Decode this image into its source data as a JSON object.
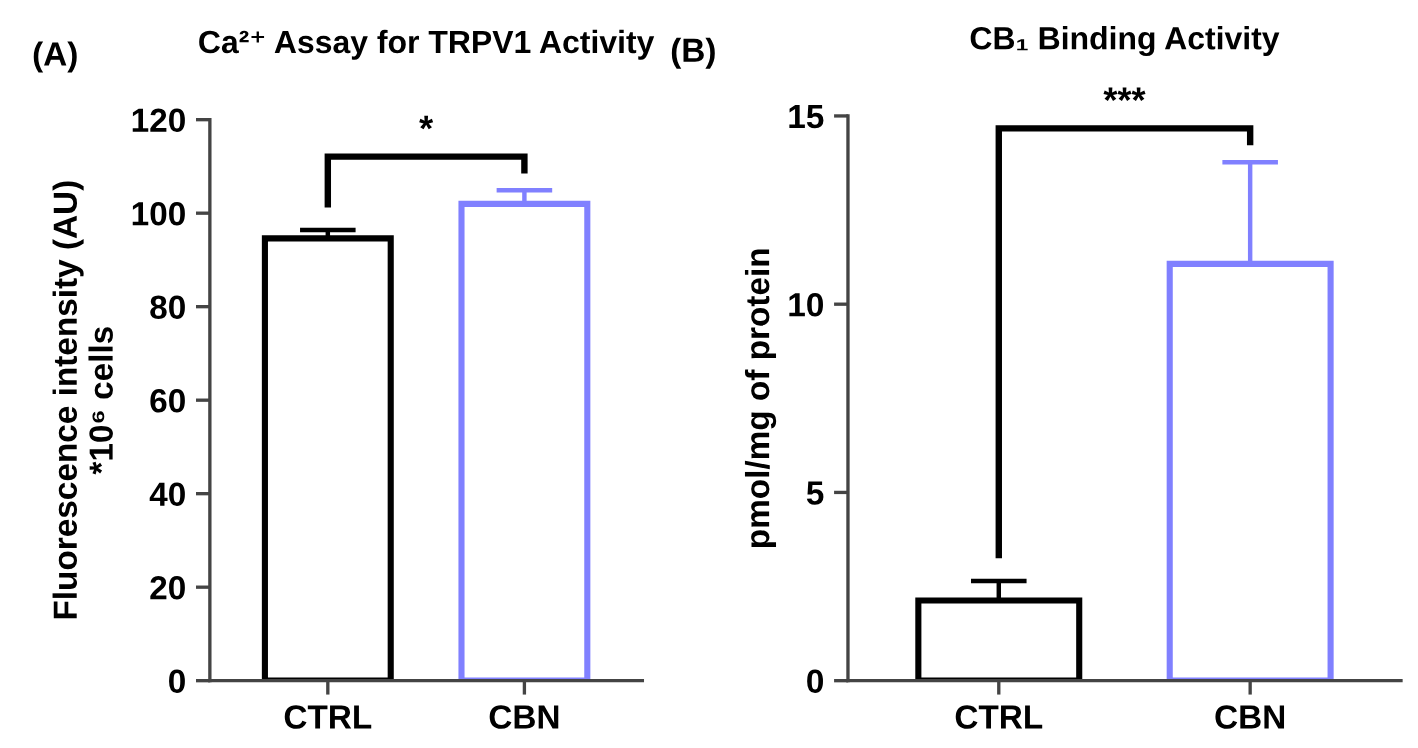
{
  "chart_data": [
    {
      "type": "bar",
      "title": "Ca²⁺ Assay for TRPV1 Activity",
      "ylabel": "Fluorescence intensity (AU)\n*10⁶ cells",
      "categories": [
        "CTRL",
        "CBN"
      ],
      "values": [
        94.6,
        102
      ],
      "errors": [
        [
          94.6,
          96.4
        ],
        [
          102,
          104.9
        ]
      ],
      "colors": [
        "#000000",
        "#8080ff"
      ],
      "ylim": [
        0,
        120
      ],
      "yticks": [
        0,
        20,
        40,
        60,
        80,
        100,
        120
      ],
      "grid": false,
      "annotations": [
        "(A)",
        "*"
      ]
    },
    {
      "type": "bar",
      "title": "CB₁ Binding Activity",
      "ylabel": "pmol/mg of protein",
      "categories": [
        "CTRL",
        "CBN"
      ],
      "values": [
        2.13,
        11.07
      ],
      "errors": [
        [
          2.13,
          2.65
        ],
        [
          11.07,
          13.77
        ]
      ],
      "colors": [
        "#000000",
        "#8080ff"
      ],
      "ylim": [
        0,
        15
      ],
      "yticks": [
        0,
        5,
        10,
        15
      ],
      "grid": false,
      "annotations": [
        "(B)",
        "***"
      ]
    }
  ]
}
